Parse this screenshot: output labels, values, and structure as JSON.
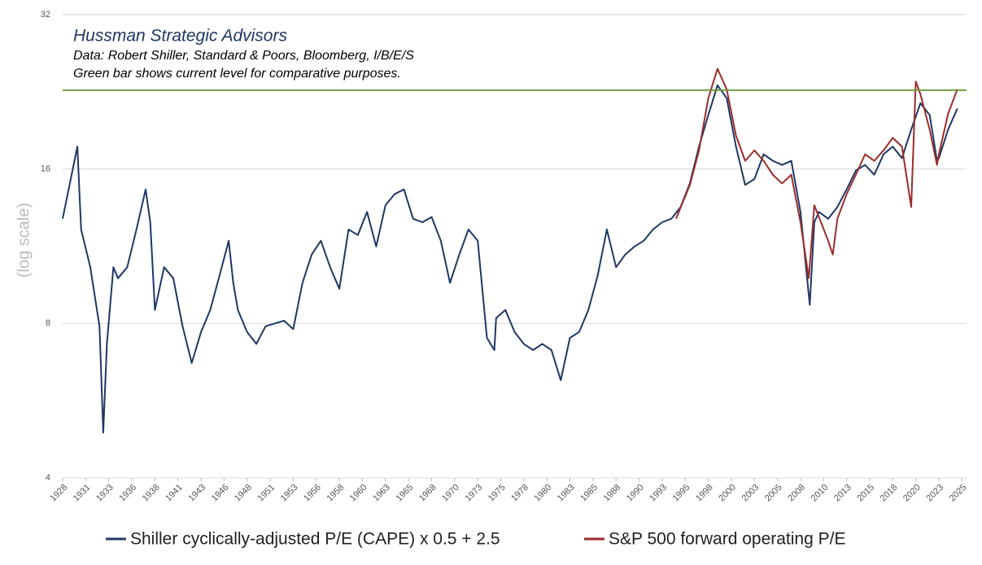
{
  "chart_data": {
    "type": "line",
    "title": "Hussman Strategic Advisors",
    "notes": [
      "Data: Robert Shiller, Standard & Poors, Bloomberg, I/B/E/S",
      "Green bar shows current level for comparative purposes."
    ],
    "ylabel": "(log scale)",
    "log_scale": true,
    "grid": true,
    "ylim": [
      4,
      32
    ],
    "yticks": [
      4,
      8,
      16,
      32
    ],
    "xlim": [
      1928,
      2026
    ],
    "xticks": [
      {
        "value": 1928,
        "label": "1928"
      },
      {
        "value": 1930.5,
        "label": "1931"
      },
      {
        "value": 1933,
        "label": "1933"
      },
      {
        "value": 1935.5,
        "label": "1936"
      },
      {
        "value": 1938,
        "label": "1938"
      },
      {
        "value": 1940.5,
        "label": "1941"
      },
      {
        "value": 1943,
        "label": "1943"
      },
      {
        "value": 1945.5,
        "label": "1946"
      },
      {
        "value": 1948,
        "label": "1948"
      },
      {
        "value": 1950.5,
        "label": "1951"
      },
      {
        "value": 1953,
        "label": "1953"
      },
      {
        "value": 1955.5,
        "label": "1956"
      },
      {
        "value": 1958,
        "label": "1958"
      },
      {
        "value": 1960.5,
        "label": "1960"
      },
      {
        "value": 1963,
        "label": "1963"
      },
      {
        "value": 1965.5,
        "label": "1965"
      },
      {
        "value": 1968,
        "label": "1968"
      },
      {
        "value": 1970.5,
        "label": "1970"
      },
      {
        "value": 1973,
        "label": "1973"
      },
      {
        "value": 1975.5,
        "label": "1975"
      },
      {
        "value": 1978,
        "label": "1978"
      },
      {
        "value": 1980.5,
        "label": "1980"
      },
      {
        "value": 1983,
        "label": "1983"
      },
      {
        "value": 1985.5,
        "label": "1985"
      },
      {
        "value": 1988,
        "label": "1988"
      },
      {
        "value": 1990.5,
        "label": "1990"
      },
      {
        "value": 1993,
        "label": "1993"
      },
      {
        "value": 1995.5,
        "label": "1995"
      },
      {
        "value": 1998,
        "label": "1998"
      },
      {
        "value": 2000.5,
        "label": "2000"
      },
      {
        "value": 2003,
        "label": "2003"
      },
      {
        "value": 2005.5,
        "label": "2005"
      },
      {
        "value": 2008,
        "label": "2008"
      },
      {
        "value": 2010.5,
        "label": "2010"
      },
      {
        "value": 2013,
        "label": "2013"
      },
      {
        "value": 2015.5,
        "label": "2015"
      },
      {
        "value": 2018,
        "label": "2018"
      },
      {
        "value": 2020.5,
        "label": "2020"
      },
      {
        "value": 2023,
        "label": "2023"
      },
      {
        "value": 2025.5,
        "label": "2025"
      }
    ],
    "reference_line": {
      "value": 22.8,
      "color": "#6f9a3c"
    },
    "series": [
      {
        "name": "Shiller cyclically-adjusted P/E (CAPE) x 0.5 + 2.5",
        "color": "#1f3864",
        "x": [
          1928,
          1929.6,
          1930,
          1931,
          1932,
          1932.4,
          1932.8,
          1933.5,
          1934,
          1935,
          1936,
          1937,
          1937.5,
          1938,
          1939,
          1940,
          1941,
          1942,
          1943,
          1944,
          1945,
          1946,
          1946.5,
          1947,
          1948,
          1949,
          1950,
          1951,
          1952,
          1953,
          1954,
          1955,
          1956,
          1957,
          1958,
          1959,
          1960,
          1961,
          1962,
          1963,
          1964,
          1965,
          1966,
          1967,
          1968,
          1969,
          1970,
          1971,
          1972,
          1973,
          1974,
          1974.8,
          1975,
          1976,
          1977,
          1978,
          1979,
          1980,
          1981,
          1982,
          1983,
          1984,
          1985,
          1986,
          1987,
          1988,
          1989,
          1990,
          1991,
          1992,
          1993,
          1994,
          1995,
          1996,
          1997,
          1998,
          1999,
          2000,
          2001,
          2002,
          2003,
          2004,
          2005,
          2006,
          2007,
          2008,
          2009,
          2009.5,
          2010,
          2011,
          2012,
          2013,
          2014,
          2015,
          2016,
          2017,
          2018,
          2019,
          2020,
          2021,
          2022,
          2022.8,
          2023,
          2024,
          2025
        ],
        "values": [
          12.8,
          17.7,
          12.2,
          10.3,
          7.9,
          4.9,
          7.3,
          10.3,
          9.8,
          10.3,
          12.2,
          14.6,
          12.6,
          8.5,
          10.3,
          9.8,
          7.9,
          6.7,
          7.7,
          8.5,
          9.9,
          11.6,
          9.6,
          8.5,
          7.7,
          7.3,
          7.9,
          8.0,
          8.1,
          7.8,
          9.6,
          10.9,
          11.6,
          10.3,
          9.35,
          12.2,
          11.9,
          13.2,
          11.3,
          13.6,
          14.3,
          14.6,
          12.8,
          12.6,
          12.9,
          11.6,
          9.6,
          10.9,
          12.2,
          11.6,
          7.5,
          7.1,
          8.2,
          8.5,
          7.7,
          7.3,
          7.1,
          7.3,
          7.1,
          6.2,
          7.5,
          7.7,
          8.5,
          9.9,
          12.2,
          10.3,
          10.9,
          11.3,
          11.6,
          12.2,
          12.6,
          12.8,
          13.5,
          15.0,
          17.7,
          20.4,
          23.3,
          22.0,
          17.7,
          14.9,
          15.3,
          17.1,
          16.6,
          16.3,
          16.6,
          13.2,
          8.7,
          12.6,
          13.2,
          12.8,
          13.5,
          14.6,
          15.9,
          16.3,
          15.6,
          17.1,
          17.7,
          16.8,
          19.1,
          21.5,
          20.4,
          16.6,
          16.8,
          19.1,
          21.0
        ]
      },
      {
        "name": "S&P 500 forward operating P/E",
        "color": "#9b2c2c",
        "x": [
          1994.5,
          1996,
          1997,
          1998,
          1999,
          2000,
          2001,
          2002,
          2003,
          2004,
          2005,
          2006,
          2007,
          2008,
          2008.9,
          2009.5,
          2010,
          2011,
          2011.5,
          2012,
          2013,
          2014,
          2015,
          2016,
          2017,
          2018,
          2019,
          2020,
          2020.5,
          2021,
          2022,
          2022.8,
          2023,
          2024,
          2025
        ],
        "values": [
          12.8,
          14.9,
          17.4,
          22.0,
          25.1,
          22.9,
          18.6,
          16.6,
          17.4,
          16.6,
          15.6,
          15.0,
          15.6,
          12.6,
          9.8,
          13.6,
          12.9,
          11.6,
          10.9,
          12.8,
          14.3,
          15.6,
          17.1,
          16.6,
          17.4,
          18.4,
          17.7,
          13.5,
          23.7,
          22.4,
          19.1,
          16.3,
          17.1,
          20.5,
          22.9
        ]
      }
    ]
  }
}
